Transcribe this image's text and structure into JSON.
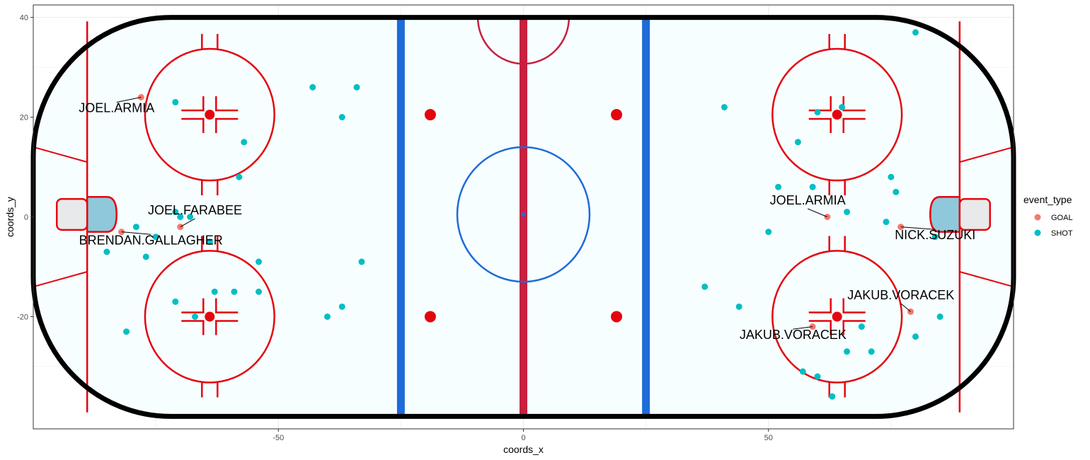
{
  "chart_data": {
    "type": "scatter",
    "title": "",
    "xlabel": "coords_x",
    "ylabel": "coords_y",
    "xlim": [
      -100,
      100
    ],
    "ylim": [
      -42.5,
      42.5
    ],
    "x_ticks": [
      -50,
      0,
      50
    ],
    "y_ticks": [
      -20,
      0,
      20,
      40
    ],
    "grid": true,
    "legend": {
      "title": "event_type",
      "placement": "right",
      "entries": [
        {
          "name": "GOAL",
          "color": "#F8766D"
        },
        {
          "name": "SHOT",
          "color": "#00BFC4"
        }
      ]
    },
    "colors": {
      "GOAL": "#F8766D",
      "SHOT": "#00BFC4"
    },
    "series": [
      {
        "name": "GOAL",
        "points": [
          {
            "x": -78,
            "y": 24,
            "label": "JOEL.ARMIA",
            "lx": -83,
            "ly": 21
          },
          {
            "x": -70,
            "y": -2,
            "label": "JOEL.FARABEE",
            "lx": -67,
            "ly": 0.5
          },
          {
            "x": -82,
            "y": -3,
            "label": "BRENDAN.GALLAGHER",
            "lx": -76,
            "ly": -5.5
          },
          {
            "x": 62,
            "y": 0,
            "label": "JOEL.ARMIA",
            "lx": 58,
            "ly": 2.5
          },
          {
            "x": 77,
            "y": -2,
            "label": "NICK.SUZUKI",
            "lx": 84,
            "ly": -4.5
          },
          {
            "x": 59,
            "y": -22,
            "label": "JAKUB.VORACEK",
            "lx": 55,
            "ly": -24.5
          },
          {
            "x": 79,
            "y": -19,
            "label": "JAKUB.VORACEK",
            "lx": 77,
            "ly": -16.5
          }
        ]
      },
      {
        "name": "SHOT",
        "points": [
          {
            "x": -71,
            "y": 23
          },
          {
            "x": -43,
            "y": 26
          },
          {
            "x": -34,
            "y": 26
          },
          {
            "x": -37,
            "y": 20
          },
          {
            "x": -57,
            "y": 15
          },
          {
            "x": -58,
            "y": 8
          },
          {
            "x": -71,
            "y": 1
          },
          {
            "x": -70,
            "y": 0
          },
          {
            "x": -68,
            "y": 0
          },
          {
            "x": -79,
            "y": -2
          },
          {
            "x": -75,
            "y": -4
          },
          {
            "x": -64,
            "y": -5
          },
          {
            "x": -85,
            "y": -7
          },
          {
            "x": -77,
            "y": -8
          },
          {
            "x": -54,
            "y": -9
          },
          {
            "x": -33,
            "y": -9
          },
          {
            "x": -71,
            "y": -17
          },
          {
            "x": -67,
            "y": -20
          },
          {
            "x": -63,
            "y": -15
          },
          {
            "x": -59,
            "y": -15
          },
          {
            "x": -54,
            "y": -15
          },
          {
            "x": -37,
            "y": -18
          },
          {
            "x": -40,
            "y": -20
          },
          {
            "x": -81,
            "y": -23
          },
          {
            "x": 41,
            "y": 22
          },
          {
            "x": 65,
            "y": 22
          },
          {
            "x": 60,
            "y": 21
          },
          {
            "x": 56,
            "y": 15
          },
          {
            "x": 52,
            "y": 6
          },
          {
            "x": 59,
            "y": 6
          },
          {
            "x": 75,
            "y": 8
          },
          {
            "x": 76,
            "y": 5
          },
          {
            "x": 66,
            "y": 1
          },
          {
            "x": 74,
            "y": -1
          },
          {
            "x": 50,
            "y": -3
          },
          {
            "x": 84,
            "y": -4
          },
          {
            "x": 37,
            "y": -14
          },
          {
            "x": 44,
            "y": -18
          },
          {
            "x": 69,
            "y": -22
          },
          {
            "x": 85,
            "y": -20
          },
          {
            "x": 80,
            "y": -24
          },
          {
            "x": 66,
            "y": -27
          },
          {
            "x": 71,
            "y": -27
          },
          {
            "x": 57,
            "y": -31
          },
          {
            "x": 60,
            "y": -32
          },
          {
            "x": 63,
            "y": -36
          },
          {
            "x": 80,
            "y": 37
          }
        ]
      }
    ]
  }
}
